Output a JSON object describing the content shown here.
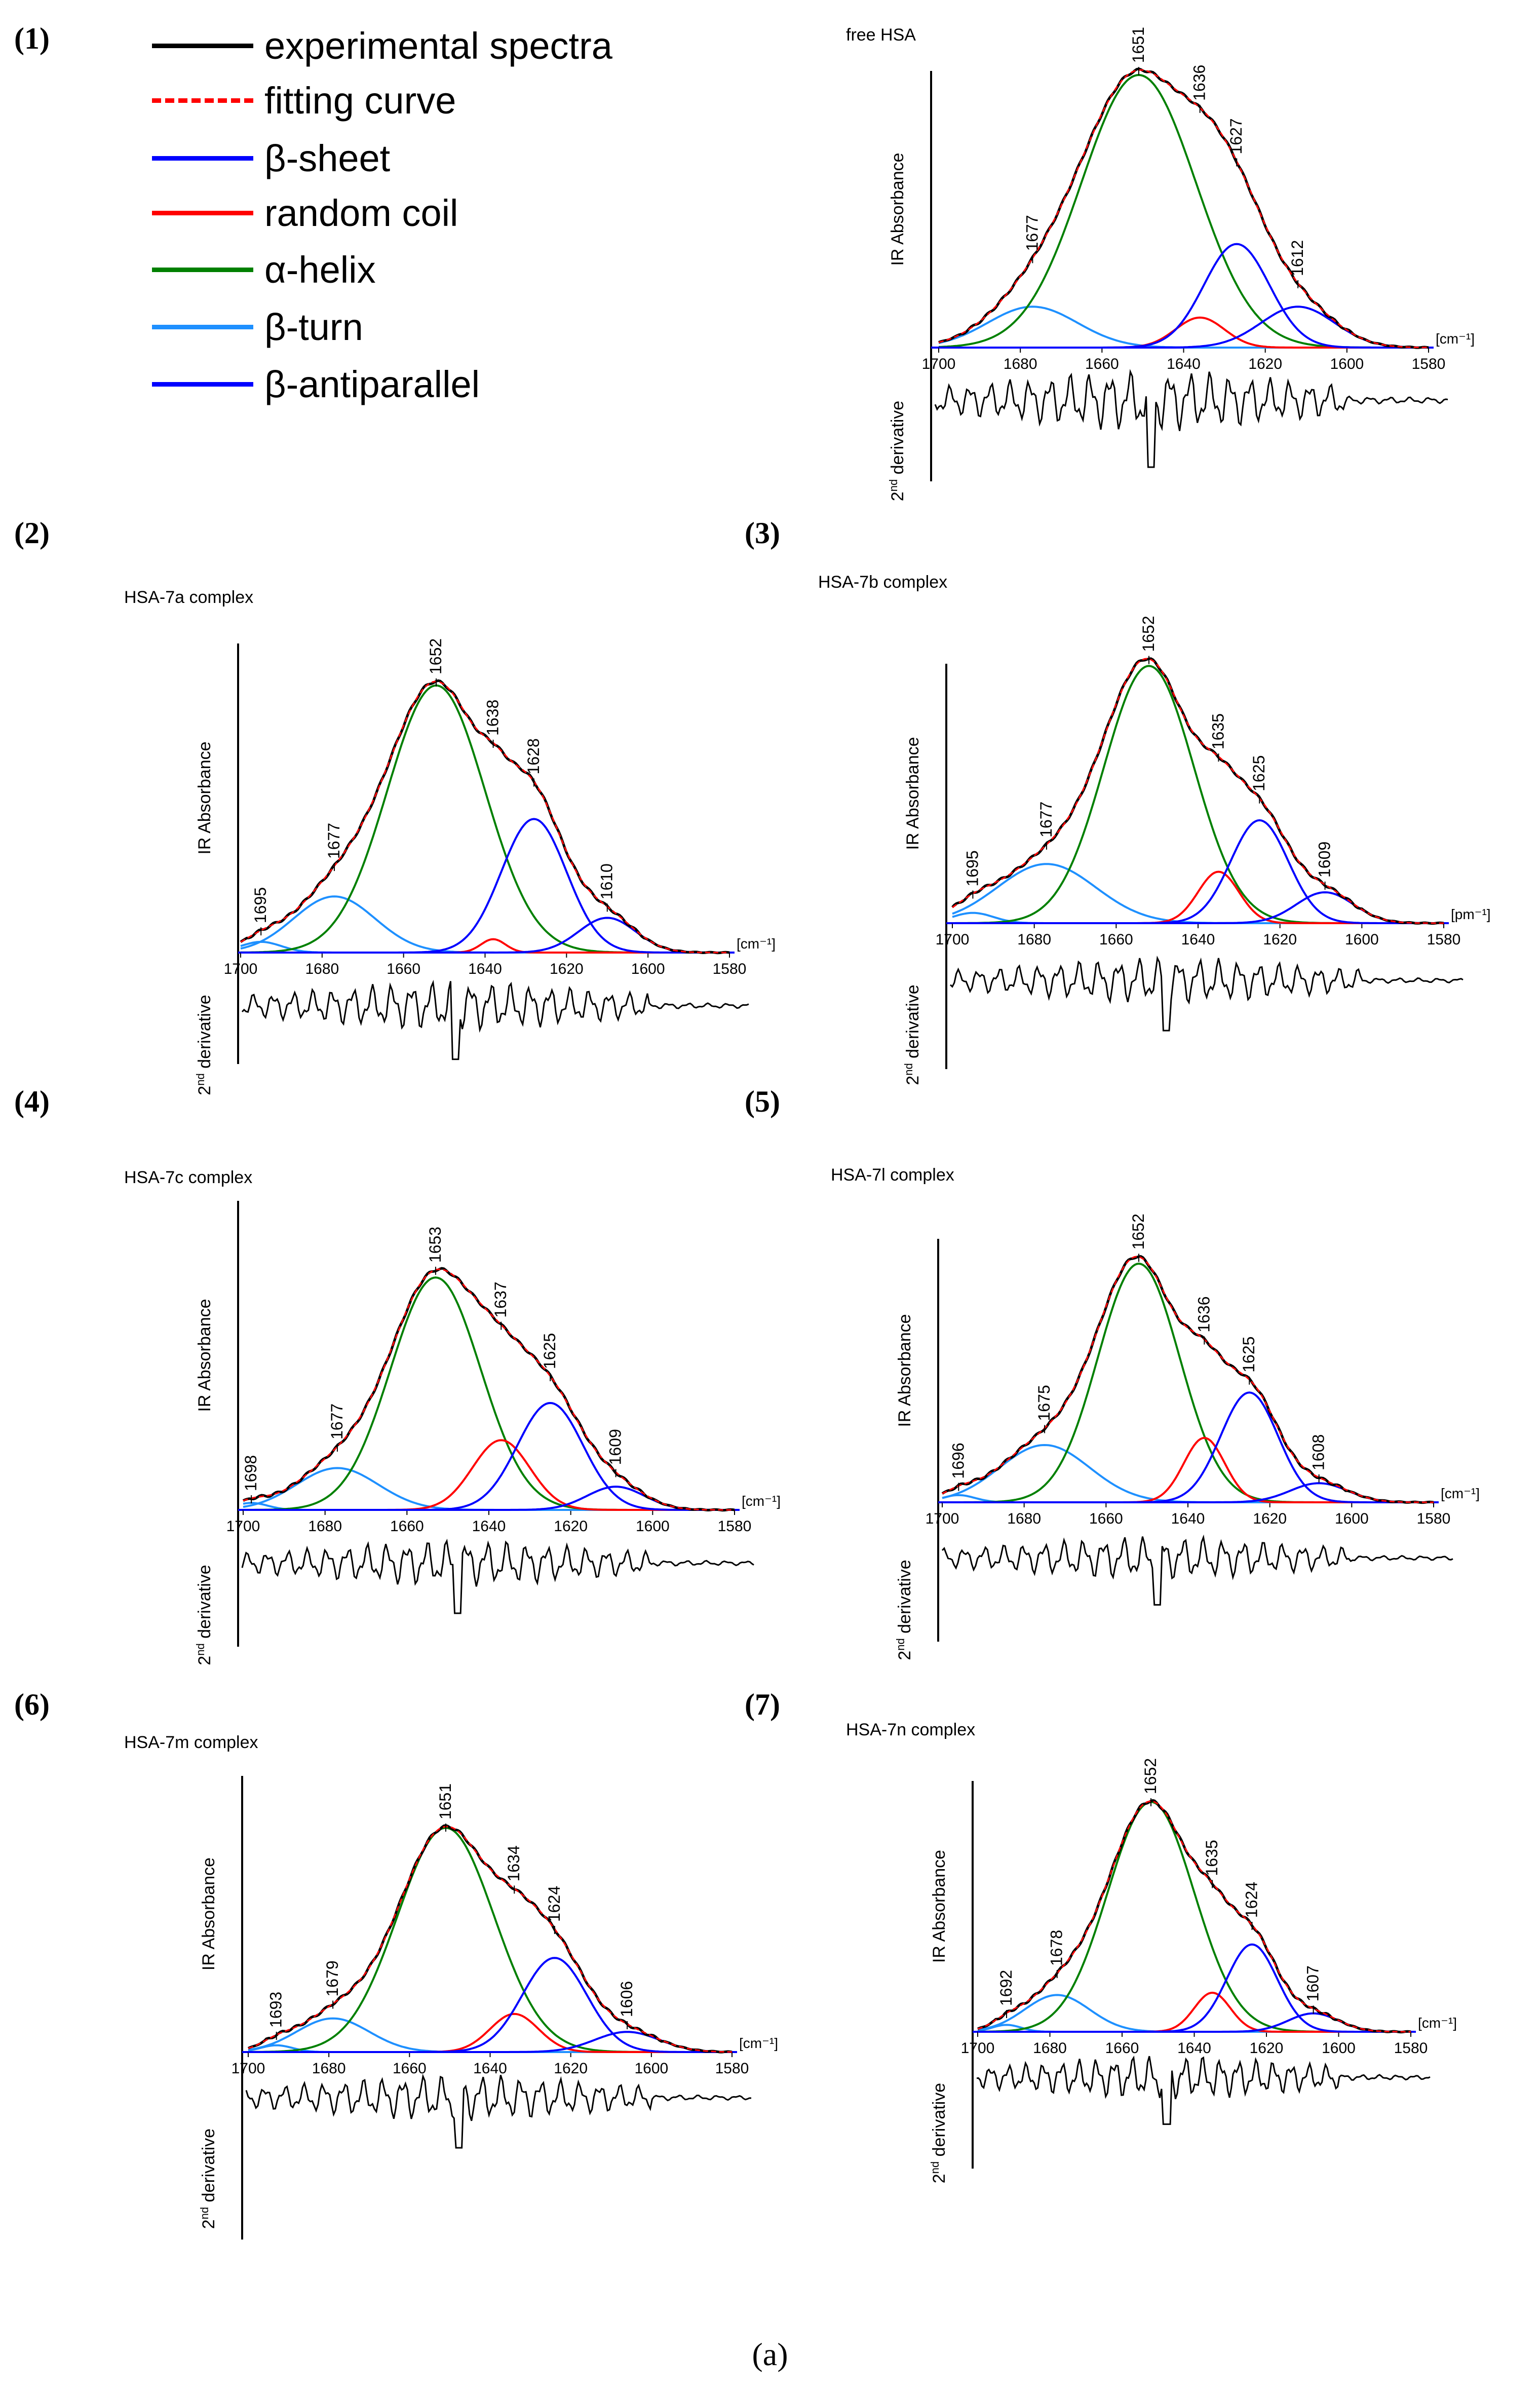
{
  "figure_caption": "(a)",
  "axis_labels": {
    "ylabel": "IR Absorbance",
    "deriv_prefix": "2",
    "deriv_sup": "nd",
    "deriv_suffix": " derivative"
  },
  "legend": [
    {
      "key": "exp",
      "label": "experimental spectra",
      "color": "#000000",
      "dash": false
    },
    {
      "key": "fit",
      "label": "fitting curve",
      "color": "#ff0000",
      "dash": true
    },
    {
      "key": "sheet",
      "label": "β-sheet",
      "color": "#0000ff",
      "dash": false
    },
    {
      "key": "coil",
      "label": "random coil",
      "color": "#ff0000",
      "dash": false
    },
    {
      "key": "helix",
      "label": "α-helix",
      "color": "#008000",
      "dash": false
    },
    {
      "key": "turn",
      "label": "β-turn",
      "color": "#1e90ff",
      "dash": false
    },
    {
      "key": "anti",
      "label": "β-antiparallel",
      "color": "#0000ff",
      "dash": false
    }
  ],
  "chart_data": [
    {
      "type": "line",
      "panel": "(1)",
      "title": "free HSA",
      "xlabel": "[cm⁻¹]",
      "ylabel": "IR Absorbance",
      "xlim": [
        1700,
        1580
      ],
      "xticks": [
        "1700",
        "1680",
        "1660",
        "1640",
        "1620",
        "1600",
        "1580"
      ],
      "bands": [
        {
          "pos": 1677,
          "label": "1677",
          "component": "β-turn",
          "height": 0.15,
          "width": 11
        },
        {
          "pos": 1651,
          "label": "1651",
          "component": "α-helix",
          "height": 1.0,
          "width": 14
        },
        {
          "pos": 1636,
          "label": "1636",
          "component": "random coil",
          "height": 0.11,
          "width": 6
        },
        {
          "pos": 1627,
          "label": "1627",
          "component": "β-sheet",
          "height": 0.38,
          "width": 8
        },
        {
          "pos": 1612,
          "label": "1612",
          "component": "β-antiparallel",
          "height": 0.15,
          "width": 9
        }
      ]
    },
    {
      "type": "line",
      "panel": "(2)",
      "title": "HSA-7a complex",
      "xlabel": "[cm⁻¹]",
      "ylabel": "IR Absorbance",
      "xlim": [
        1700,
        1580
      ],
      "xticks": [
        "1700",
        "1680",
        "1660",
        "1640",
        "1620",
        "1600",
        "1580"
      ],
      "bands": [
        {
          "pos": 1695,
          "label": "1695",
          "component": "β-turn",
          "height": 0.04,
          "width": 5
        },
        {
          "pos": 1677,
          "label": "1677",
          "component": "β-turn",
          "height": 0.21,
          "width": 10
        },
        {
          "pos": 1652,
          "label": "1652",
          "component": "α-helix",
          "height": 1.0,
          "width": 12
        },
        {
          "pos": 1638,
          "label": "1638",
          "component": "random coil",
          "height": 0.05,
          "width": 3
        },
        {
          "pos": 1628,
          "label": "1628",
          "component": "β-sheet",
          "height": 0.5,
          "width": 8
        },
        {
          "pos": 1610,
          "label": "1610",
          "component": "β-antiparallel",
          "height": 0.13,
          "width": 7
        }
      ]
    },
    {
      "type": "line",
      "panel": "(3)",
      "title": "HSA-7b complex",
      "xlabel": "[pm⁻¹]",
      "ylabel": "IR Absorbance",
      "xlim": [
        1700,
        1580
      ],
      "xticks": [
        "1700",
        "1680",
        "1660",
        "1640",
        "1620",
        "1600",
        "1580"
      ],
      "bands": [
        {
          "pos": 1695,
          "label": "1695",
          "component": "β-turn",
          "height": 0.04,
          "width": 5
        },
        {
          "pos": 1677,
          "label": "1677",
          "component": "β-turn",
          "height": 0.23,
          "width": 12
        },
        {
          "pos": 1652,
          "label": "1652",
          "component": "α-helix",
          "height": 1.0,
          "width": 11
        },
        {
          "pos": 1635,
          "label": "1635",
          "component": "random coil",
          "height": 0.2,
          "width": 5
        },
        {
          "pos": 1625,
          "label": "1625",
          "component": "β-sheet",
          "height": 0.4,
          "width": 7
        },
        {
          "pos": 1609,
          "label": "1609",
          "component": "β-antiparallel",
          "height": 0.12,
          "width": 7
        }
      ]
    },
    {
      "type": "line",
      "panel": "(4)",
      "title": "HSA-7c complex",
      "xlabel": "[cm⁻¹]",
      "ylabel": "IR Absorbance",
      "xlim": [
        1700,
        1580
      ],
      "xticks": [
        "1700",
        "1680",
        "1660",
        "1640",
        "1620",
        "1600",
        "1580"
      ],
      "bands": [
        {
          "pos": 1698,
          "label": "1698",
          "component": "β-turn",
          "height": 0.03,
          "width": 4
        },
        {
          "pos": 1677,
          "label": "1677",
          "component": "β-turn",
          "height": 0.18,
          "width": 10
        },
        {
          "pos": 1653,
          "label": "1653",
          "component": "α-helix",
          "height": 1.0,
          "width": 11
        },
        {
          "pos": 1637,
          "label": "1637",
          "component": "random coil",
          "height": 0.3,
          "width": 7
        },
        {
          "pos": 1625,
          "label": "1625",
          "component": "β-sheet",
          "height": 0.46,
          "width": 8
        },
        {
          "pos": 1609,
          "label": "1609",
          "component": "β-antiparallel",
          "height": 0.1,
          "width": 7
        }
      ]
    },
    {
      "type": "line",
      "panel": "(5)",
      "title": "HSA-7l complex",
      "xlabel": "[cm⁻¹]",
      "ylabel": "IR Absorbance",
      "xlim": [
        1700,
        1580
      ],
      "xticks": [
        "1700",
        "1680",
        "1660",
        "1640",
        "1620",
        "1600",
        "1580"
      ],
      "bands": [
        {
          "pos": 1696,
          "label": "1696",
          "component": "β-turn",
          "height": 0.03,
          "width": 4
        },
        {
          "pos": 1675,
          "label": "1675",
          "component": "β-turn",
          "height": 0.24,
          "width": 11
        },
        {
          "pos": 1652,
          "label": "1652",
          "component": "α-helix",
          "height": 1.0,
          "width": 10
        },
        {
          "pos": 1636,
          "label": "1636",
          "component": "random coil",
          "height": 0.27,
          "width": 5
        },
        {
          "pos": 1625,
          "label": "1625",
          "component": "β-sheet",
          "height": 0.46,
          "width": 7
        },
        {
          "pos": 1608,
          "label": "1608",
          "component": "β-antiparallel",
          "height": 0.08,
          "width": 7
        }
      ]
    },
    {
      "type": "line",
      "panel": "(6)",
      "title": "HSA-7m complex",
      "xlabel": "[cm⁻¹]",
      "ylabel": "IR Absorbance",
      "xlim": [
        1700,
        1580
      ],
      "xticks": [
        "1700",
        "1680",
        "1660",
        "1640",
        "1620",
        "1600",
        "1580"
      ],
      "bands": [
        {
          "pos": 1693,
          "label": "1693",
          "component": "β-turn",
          "height": 0.03,
          "width": 4
        },
        {
          "pos": 1679,
          "label": "1679",
          "component": "β-turn",
          "height": 0.15,
          "width": 9
        },
        {
          "pos": 1651,
          "label": "1651",
          "component": "α-helix",
          "height": 1.0,
          "width": 12
        },
        {
          "pos": 1634,
          "label": "1634",
          "component": "random coil",
          "height": 0.17,
          "width": 6
        },
        {
          "pos": 1624,
          "label": "1624",
          "component": "β-sheet",
          "height": 0.42,
          "width": 8
        },
        {
          "pos": 1606,
          "label": "1606",
          "component": "β-antiparallel",
          "height": 0.09,
          "width": 8
        }
      ]
    },
    {
      "type": "line",
      "panel": "(7)",
      "title": "HSA-7n complex",
      "xlabel": "[cm⁻¹]",
      "ylabel": "IR Absorbance",
      "xlim": [
        1700,
        1580
      ],
      "xticks": [
        "1700",
        "1680",
        "1660",
        "1640",
        "1620",
        "1600",
        "1580"
      ],
      "bands": [
        {
          "pos": 1692,
          "label": "1692",
          "component": "β-turn",
          "height": 0.03,
          "width": 4
        },
        {
          "pos": 1678,
          "label": "1678",
          "component": "β-turn",
          "height": 0.16,
          "width": 9
        },
        {
          "pos": 1652,
          "label": "1652",
          "component": "α-helix",
          "height": 1.0,
          "width": 12
        },
        {
          "pos": 1635,
          "label": "1635",
          "component": "random coil",
          "height": 0.17,
          "width": 5
        },
        {
          "pos": 1624,
          "label": "1624",
          "component": "β-sheet",
          "height": 0.38,
          "width": 7
        },
        {
          "pos": 1607,
          "label": "1607",
          "component": "β-antiparallel",
          "height": 0.08,
          "width": 7
        }
      ]
    }
  ]
}
